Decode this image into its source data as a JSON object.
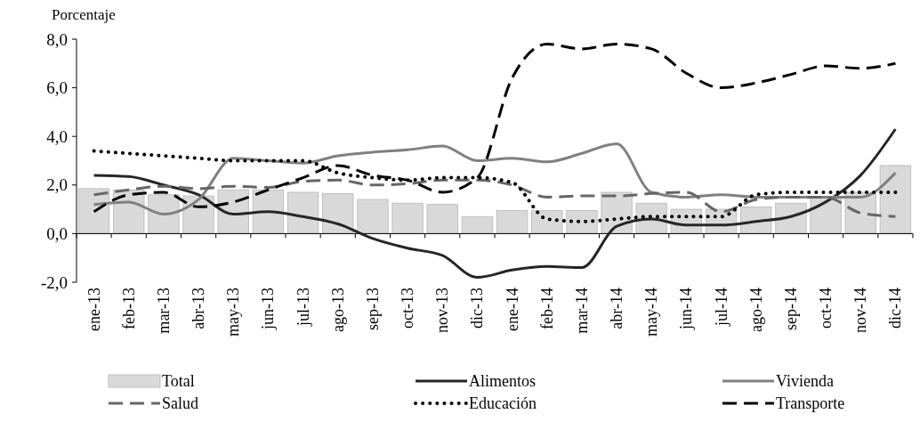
{
  "chart_data": {
    "type": "bar",
    "ylabel": "Porcentaje",
    "categories": [
      "ene-13",
      "feb-13",
      "mar-13",
      "abr-13",
      "may-13",
      "jun-13",
      "jul-13",
      "ago-13",
      "sep-13",
      "oct-13",
      "nov-13",
      "dic-13",
      "ene-14",
      "feb-14",
      "mar-14",
      "abr-14",
      "may-14",
      "jun-14",
      "jul-14",
      "ago-14",
      "sep-14",
      "oct-14",
      "nov-14",
      "dic-14"
    ],
    "series": [
      {
        "name": "Total",
        "color": "#d9d9d9",
        "values": [
          1.85,
          1.8,
          1.6,
          1.55,
          1.8,
          1.8,
          1.7,
          1.65,
          1.4,
          1.25,
          1.2,
          0.7,
          0.95,
          0.95,
          0.95,
          1.7,
          1.25,
          1.0,
          1.0,
          1.1,
          1.25,
          1.5,
          1.7,
          2.8
        ]
      },
      {
        "name": "Alimentos",
        "type": "line",
        "color": "#262626",
        "line_style": "solid",
        "values": [
          2.4,
          2.35,
          2.0,
          1.6,
          0.8,
          0.9,
          0.7,
          0.4,
          -0.2,
          -0.6,
          -0.9,
          -1.8,
          -1.5,
          -1.35,
          -1.4,
          0.3,
          0.6,
          0.35,
          0.35,
          0.5,
          0.7,
          1.3,
          2.4,
          4.3
        ]
      },
      {
        "name": "Vivienda",
        "type": "line",
        "color": "#808080",
        "line_style": "solid",
        "values": [
          1.2,
          1.3,
          0.8,
          1.4,
          3.1,
          3.0,
          2.9,
          3.2,
          3.35,
          3.45,
          3.6,
          3.0,
          3.1,
          2.95,
          3.3,
          3.7,
          1.7,
          1.5,
          1.6,
          1.5,
          1.5,
          1.5,
          1.5,
          2.5
        ]
      },
      {
        "name": "Salud",
        "type": "line",
        "color": "#666666",
        "line_style": "dashed",
        "values": [
          1.6,
          1.8,
          1.95,
          1.85,
          1.95,
          1.9,
          2.15,
          2.2,
          2.0,
          2.05,
          2.2,
          2.2,
          2.0,
          1.5,
          1.55,
          1.55,
          1.65,
          1.7,
          0.9,
          1.4,
          1.5,
          1.5,
          0.85,
          0.7
        ]
      },
      {
        "name": "Educación",
        "type": "line",
        "color": "#000000",
        "line_style": "dotted",
        "values": [
          3.4,
          3.3,
          3.2,
          3.1,
          3.0,
          3.0,
          3.0,
          2.5,
          2.3,
          2.2,
          2.3,
          2.3,
          2.1,
          0.6,
          0.5,
          0.6,
          0.7,
          0.7,
          0.7,
          1.6,
          1.7,
          1.7,
          1.7,
          1.7
        ]
      },
      {
        "name": "Transporte",
        "type": "line",
        "color": "#000000",
        "line_style": "dashed",
        "values": [
          0.9,
          1.6,
          1.7,
          1.1,
          1.3,
          1.8,
          2.3,
          2.8,
          2.4,
          2.2,
          1.7,
          2.3,
          6.4,
          7.8,
          7.6,
          7.8,
          7.6,
          6.6,
          6.0,
          6.2,
          6.55,
          6.9,
          6.8,
          7.0
        ]
      }
    ],
    "ylim": [
      -2,
      8
    ],
    "yticks": [
      {
        "value": -2,
        "label": "-2,0"
      },
      {
        "value": 0,
        "label": "0,0"
      },
      {
        "value": 2,
        "label": "2,0"
      },
      {
        "value": 4,
        "label": "4,0"
      },
      {
        "value": 6,
        "label": "6,0"
      },
      {
        "value": 8,
        "label": "8,0"
      }
    ],
    "legend": "bottom"
  }
}
